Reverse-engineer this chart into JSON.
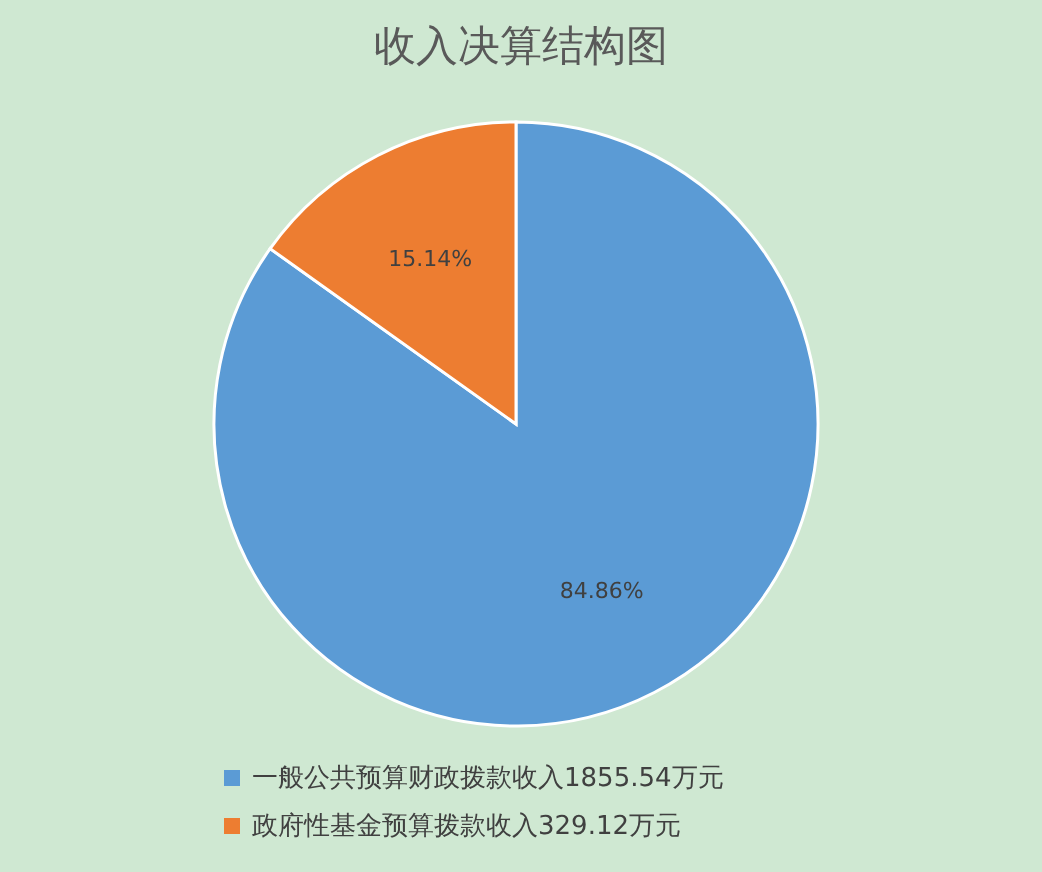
{
  "chart_data": {
    "type": "pie",
    "title": "收入决算结构图",
    "categories": [
      "一般公共预算财政拨款收入1855.54万元",
      "政府性基金预算拨款收入329.12万元"
    ],
    "values": [
      84.86,
      15.14
    ],
    "colors": [
      "#5b9bd5",
      "#ed7d31"
    ],
    "value_labels": [
      "84.86%",
      "15.14%"
    ],
    "legend": "bottom"
  }
}
